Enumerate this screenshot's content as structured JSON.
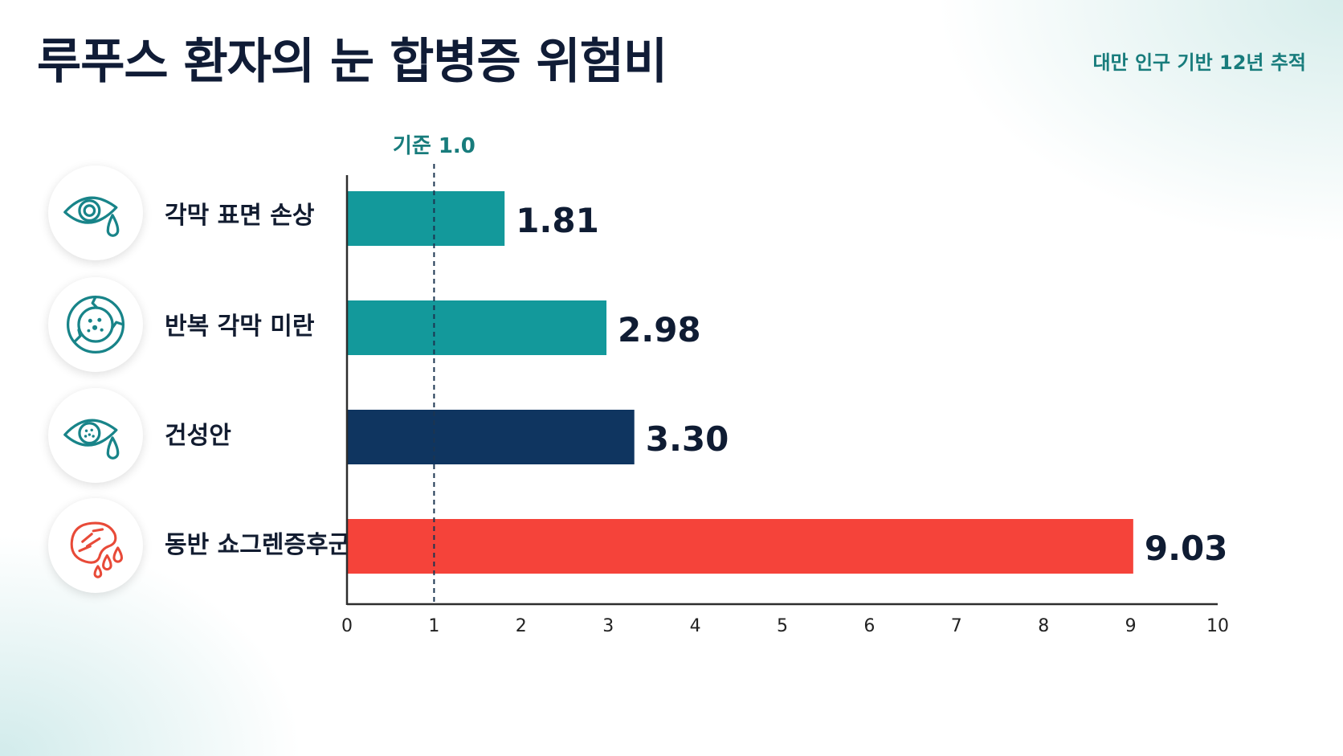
{
  "title": "루푸스 환자의 눈 합병증 위험비",
  "subtitle": "대만 인구 기반 12년 추적",
  "chart_data": {
    "type": "bar",
    "orientation": "horizontal",
    "title": "루푸스 환자의 눈 합병증 위험비",
    "subtitle": "대만 인구 기반 12년 추적",
    "categories": [
      "각막 표면 손상",
      "반복 각막 미란",
      "건성안",
      "동반 쇼그렌증후군"
    ],
    "values": [
      1.81,
      2.98,
      3.3,
      9.03
    ],
    "value_labels": [
      "1.81",
      "2.98",
      "3.30",
      "9.03"
    ],
    "bar_colors": [
      "#13999b",
      "#13999b",
      "#0f3560",
      "#f5433a"
    ],
    "xlim": [
      0,
      10
    ],
    "x_ticks": [
      "0",
      "1",
      "2",
      "3",
      "4",
      "5",
      "6",
      "7",
      "8",
      "9",
      "10"
    ],
    "reference_line": {
      "value": 1.0,
      "label": "기준 1.0",
      "color": "#187c7c"
    },
    "grid": false,
    "icons": [
      "eye-tear-icon",
      "damaged-cornea-icon",
      "dry-eye-icon",
      "gland-drops-icon"
    ]
  },
  "colors": {
    "title": "#101c36",
    "accent": "#187c7c",
    "teal_bar": "#13999b",
    "navy_bar": "#0f3560",
    "red_bar": "#f5433a",
    "axis": "#2d2d2d"
  }
}
